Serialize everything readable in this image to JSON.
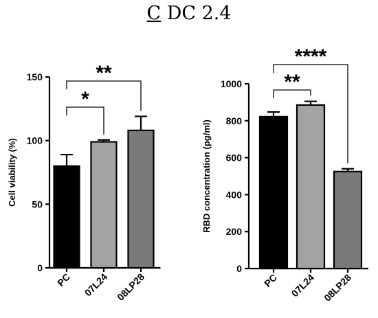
{
  "figure": {
    "panel_letter": "C",
    "title_rest": " DC 2.4"
  },
  "chart_data": [
    {
      "type": "bar",
      "ylabel": "Cell viability (%)",
      "ylim": [
        0,
        150
      ],
      "yticks": [
        0,
        50,
        100,
        150
      ],
      "categories": [
        "PC",
        "07L24",
        "08LP28"
      ],
      "values": [
        80,
        99,
        108
      ],
      "error": [
        9,
        1.5,
        11
      ],
      "bar_colors": [
        "#000000",
        "#a3a3a3",
        "#7a7a7a"
      ],
      "significance": [
        {
          "from": 0,
          "to": 1,
          "label": "*"
        },
        {
          "from": 0,
          "to": 2,
          "label": "**"
        }
      ]
    },
    {
      "type": "bar",
      "ylabel": "RBD concentration (pg/ml)",
      "ylim": [
        0,
        1000
      ],
      "yticks": [
        0,
        200,
        400,
        600,
        800,
        1000
      ],
      "categories": [
        "PC",
        "07L24",
        "08LP28"
      ],
      "values": [
        822,
        885,
        525
      ],
      "error": [
        25,
        20,
        15
      ],
      "bar_colors": [
        "#000000",
        "#a3a3a3",
        "#7a7a7a"
      ],
      "significance": [
        {
          "from": 0,
          "to": 1,
          "label": "**"
        },
        {
          "from": 0,
          "to": 2,
          "label": "****"
        }
      ]
    }
  ]
}
